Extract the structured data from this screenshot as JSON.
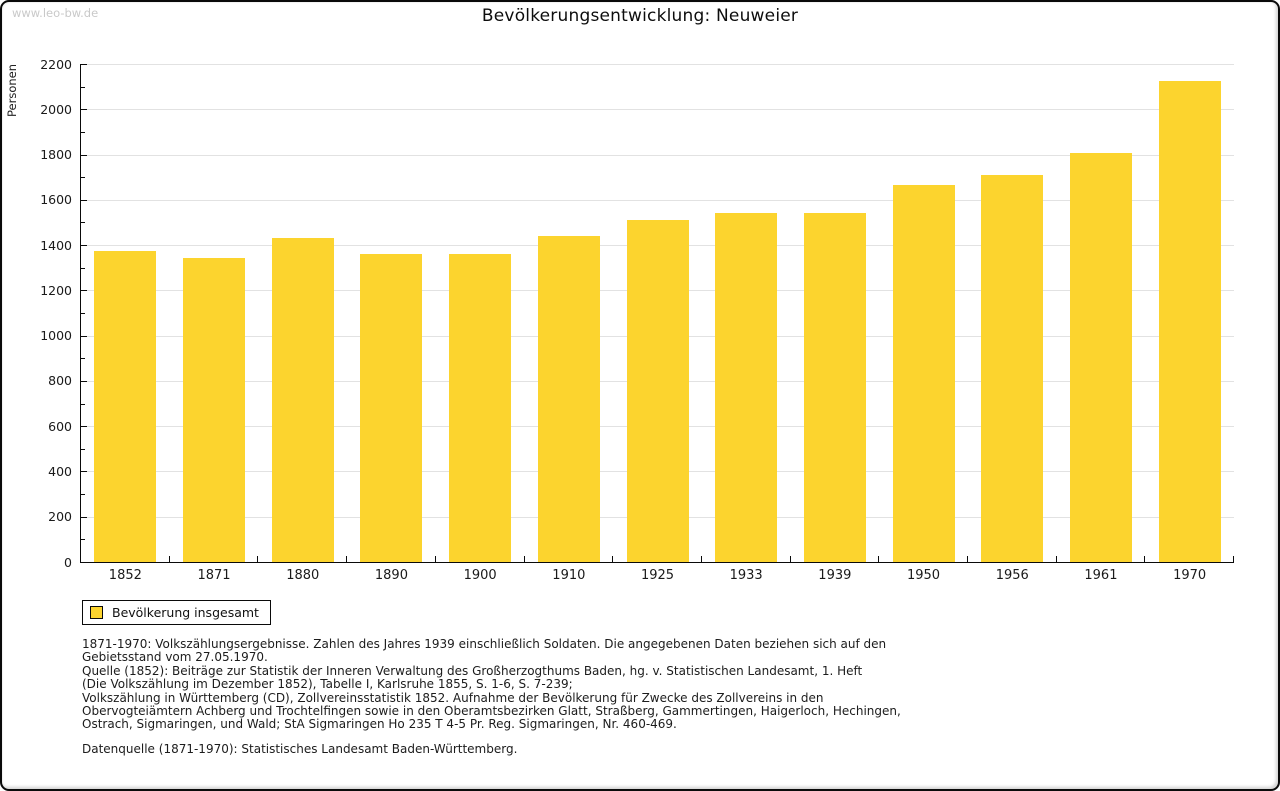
{
  "page": {
    "watermark": "www.leo-bw.de",
    "title": "Bevölkerungsentwicklung: Neuweier"
  },
  "chart_data": {
    "type": "bar",
    "title": "Bevölkerungsentwicklung: Neuweier",
    "xlabel": "",
    "ylabel": "Personen",
    "ylim": [
      0,
      2200
    ],
    "y_major_step": 200,
    "y_minor_step": 100,
    "grid": "horizontal-major",
    "bar_color": "#FCD42E",
    "categories": [
      "1852",
      "1871",
      "1880",
      "1890",
      "1900",
      "1910",
      "1925",
      "1933",
      "1939",
      "1950",
      "1956",
      "1961",
      "1970"
    ],
    "values": [
      1375,
      1345,
      1430,
      1360,
      1360,
      1440,
      1512,
      1540,
      1540,
      1665,
      1710,
      1805,
      2125
    ],
    "legend": {
      "position": "bottom-left",
      "entries": [
        {
          "label": "Bevölkerung insgesamt",
          "color": "#FCD42E"
        }
      ]
    }
  },
  "footer": {
    "lines": [
      "1871-1970: Volkszählungsergebnisse. Zahlen des Jahres 1939 einschließlich Soldaten. Die angegebenen Daten beziehen sich auf den",
      "Gebietsstand vom 27.05.1970.",
      "Quelle (1852): Beiträge zur Statistik der Inneren Verwaltung des Großherzogthums Baden, hg. v. Statistischen Landesamt, 1. Heft",
      "(Die Volkszählung im Dezember 1852), Tabelle I, Karlsruhe 1855, S. 1-6, S. 7-239;",
      "Volkszählung in Württemberg (CD), Zollvereinsstatistik 1852. Aufnahme der Bevölkerung für Zwecke des Zollvereins in den",
      "Obervogteiämtern Achberg und Trochtelfingen sowie in den Oberamtsbezirken Glatt, Straßberg, Gammertingen, Haigerloch, Hechingen,",
      "Ostrach, Sigmaringen, und Wald; StA Sigmaringen Ho 235 T 4-5 Pr. Reg. Sigmaringen, Nr. 460-469."
    ],
    "datasource": "Datenquelle (1871-1970): Statistisches Landesamt Baden-Württemberg."
  }
}
